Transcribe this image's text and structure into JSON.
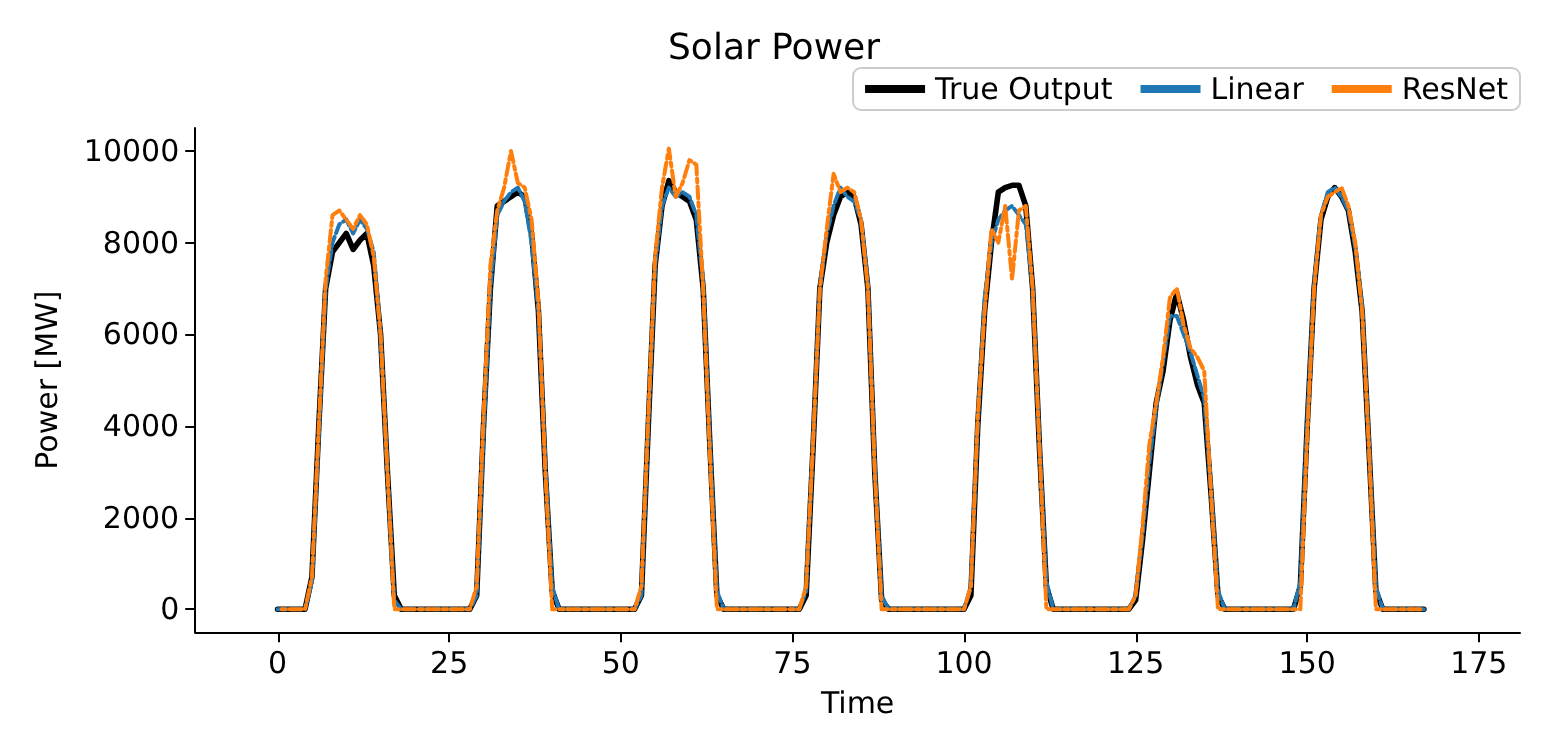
{
  "chart_data": {
    "type": "line",
    "title": "Solar Power",
    "xlabel": "Time",
    "ylabel": "Power [MW]",
    "x": [
      0,
      1,
      2,
      3,
      4,
      5,
      6,
      7,
      8,
      9,
      10,
      11,
      12,
      13,
      14,
      15,
      16,
      17,
      18,
      19,
      20,
      21,
      22,
      23,
      24,
      25,
      26,
      27,
      28,
      29,
      30,
      31,
      32,
      33,
      34,
      35,
      36,
      37,
      38,
      39,
      40,
      41,
      42,
      43,
      44,
      45,
      46,
      47,
      48,
      49,
      50,
      51,
      52,
      53,
      54,
      55,
      56,
      57,
      58,
      59,
      60,
      61,
      62,
      63,
      64,
      65,
      66,
      67,
      68,
      69,
      70,
      71,
      72,
      73,
      74,
      75,
      76,
      77,
      78,
      79,
      80,
      81,
      82,
      83,
      84,
      85,
      86,
      87,
      88,
      89,
      90,
      91,
      92,
      93,
      94,
      95,
      96,
      97,
      98,
      99,
      100,
      101,
      102,
      103,
      104,
      105,
      106,
      107,
      108,
      109,
      110,
      111,
      112,
      113,
      114,
      115,
      116,
      117,
      118,
      119,
      120,
      121,
      122,
      123,
      124,
      125,
      126,
      127,
      128,
      129,
      130,
      131,
      132,
      133,
      134,
      135,
      136,
      137,
      138,
      139,
      140,
      141,
      142,
      143,
      144,
      145,
      146,
      147,
      148,
      149,
      150,
      151,
      152,
      153,
      154,
      155,
      156,
      157,
      158,
      159,
      160,
      161,
      162,
      163,
      164,
      165,
      166,
      167
    ],
    "series": [
      {
        "name": "True Output",
        "color": "#000000",
        "line_style": "solid",
        "values": [
          0,
          0,
          0,
          0,
          0,
          700,
          4000,
          7000,
          7800,
          8000,
          8200,
          7850,
          8050,
          8200,
          7500,
          6000,
          3000,
          300,
          0,
          0,
          0,
          0,
          0,
          0,
          0,
          0,
          0,
          0,
          0,
          300,
          4000,
          7000,
          8800,
          8900,
          9000,
          9100,
          9000,
          8200,
          6500,
          3000,
          400,
          0,
          0,
          0,
          0,
          0,
          0,
          0,
          0,
          0,
          0,
          0,
          0,
          300,
          4000,
          7500,
          8800,
          9350,
          9100,
          9000,
          8900,
          8500,
          7000,
          3500,
          300,
          0,
          0,
          0,
          0,
          0,
          0,
          0,
          0,
          0,
          0,
          0,
          0,
          300,
          3500,
          7000,
          8000,
          8600,
          9000,
          9100,
          9000,
          8400,
          7000,
          3000,
          200,
          0,
          0,
          0,
          0,
          0,
          0,
          0,
          0,
          0,
          0,
          0,
          0,
          300,
          4000,
          6500,
          8000,
          9100,
          9200,
          9250,
          9250,
          8800,
          7000,
          3500,
          500,
          0,
          0,
          0,
          0,
          0,
          0,
          0,
          0,
          0,
          0,
          0,
          0,
          200,
          1500,
          3000,
          4500,
          5200,
          6300,
          6900,
          6300,
          5500,
          4900,
          4500,
          2500,
          300,
          0,
          0,
          0,
          0,
          0,
          0,
          0,
          0,
          0,
          0,
          0,
          500,
          4000,
          7000,
          8500,
          9000,
          9200,
          9000,
          8700,
          7800,
          6500,
          3500,
          400,
          0,
          0,
          0,
          0,
          0,
          0,
          0
        ]
      },
      {
        "name": "Linear",
        "color": "#1f77b4",
        "line_style": "dashed",
        "values": [
          0,
          0,
          0,
          0,
          0,
          600,
          3800,
          7000,
          8000,
          8400,
          8500,
          8200,
          8500,
          8300,
          7800,
          6000,
          3000,
          200,
          0,
          0,
          0,
          0,
          0,
          0,
          0,
          0,
          0,
          0,
          0,
          300,
          3800,
          7000,
          8600,
          8900,
          9100,
          9200,
          8900,
          8000,
          6500,
          3200,
          500,
          0,
          0,
          0,
          0,
          0,
          0,
          0,
          0,
          0,
          0,
          0,
          0,
          300,
          4000,
          7500,
          8800,
          9200,
          9000,
          9100,
          9000,
          8600,
          7100,
          3600,
          400,
          0,
          0,
          0,
          0,
          0,
          0,
          0,
          0,
          0,
          0,
          0,
          0,
          400,
          3600,
          7000,
          8200,
          8800,
          9200,
          9000,
          8900,
          8500,
          7100,
          3100,
          300,
          0,
          0,
          0,
          0,
          0,
          0,
          0,
          0,
          0,
          0,
          0,
          0,
          500,
          4000,
          6800,
          8000,
          8500,
          8700,
          8800,
          8600,
          8400,
          7000,
          3600,
          600,
          0,
          0,
          0,
          0,
          0,
          0,
          0,
          0,
          0,
          0,
          0,
          0,
          300,
          1600,
          3200,
          4400,
          5400,
          6400,
          6400,
          6000,
          5600,
          5100,
          4600,
          2600,
          400,
          0,
          0,
          0,
          0,
          0,
          0,
          0,
          0,
          0,
          0,
          0,
          600,
          4100,
          7100,
          8600,
          9100,
          9200,
          9000,
          8700,
          7900,
          6600,
          3600,
          500,
          0,
          0,
          0,
          0,
          0,
          0,
          0
        ]
      },
      {
        "name": "ResNet",
        "color": "#ff7f0e",
        "line_style": "dashdot",
        "values": [
          0,
          0,
          0,
          0,
          0,
          700,
          4000,
          7200,
          8600,
          8700,
          8500,
          8300,
          8600,
          8400,
          7700,
          6000,
          3000,
          0,
          0,
          0,
          0,
          0,
          0,
          0,
          0,
          0,
          0,
          0,
          0,
          500,
          4200,
          7500,
          8700,
          9200,
          10000,
          9300,
          9200,
          8500,
          6700,
          3000,
          0,
          0,
          0,
          0,
          0,
          0,
          0,
          0,
          0,
          0,
          0,
          0,
          0,
          500,
          4200,
          7700,
          9200,
          10050,
          9000,
          9300,
          9800,
          9700,
          7000,
          3300,
          0,
          0,
          0,
          0,
          0,
          0,
          0,
          0,
          0,
          0,
          0,
          0,
          0,
          500,
          3600,
          7000,
          8300,
          9500,
          9100,
          9200,
          9100,
          8500,
          7000,
          3000,
          0,
          0,
          0,
          0,
          0,
          0,
          0,
          0,
          0,
          0,
          0,
          0,
          0,
          500,
          4200,
          6500,
          8300,
          8000,
          8800,
          7200,
          8700,
          8800,
          7000,
          3500,
          0,
          0,
          0,
          0,
          0,
          0,
          0,
          0,
          0,
          0,
          0,
          0,
          0,
          300,
          1800,
          3600,
          4500,
          5500,
          6800,
          7000,
          6200,
          5700,
          5500,
          5200,
          2500,
          0,
          0,
          0,
          0,
          0,
          0,
          0,
          0,
          0,
          0,
          0,
          0,
          0,
          3800,
          7000,
          8600,
          9000,
          9100,
          9200,
          8800,
          8000,
          6500,
          3500,
          0,
          0,
          0,
          0,
          0,
          0,
          0,
          0
        ]
      }
    ],
    "xlim": [
      -12,
      181
    ],
    "xticks": [
      0,
      25,
      50,
      75,
      100,
      125,
      150,
      175
    ],
    "ylim": [
      -500,
      10500
    ],
    "yticks": [
      0,
      2000,
      4000,
      6000,
      8000,
      10000
    ],
    "grid": false,
    "legend": "top right",
    "marker": "none"
  }
}
